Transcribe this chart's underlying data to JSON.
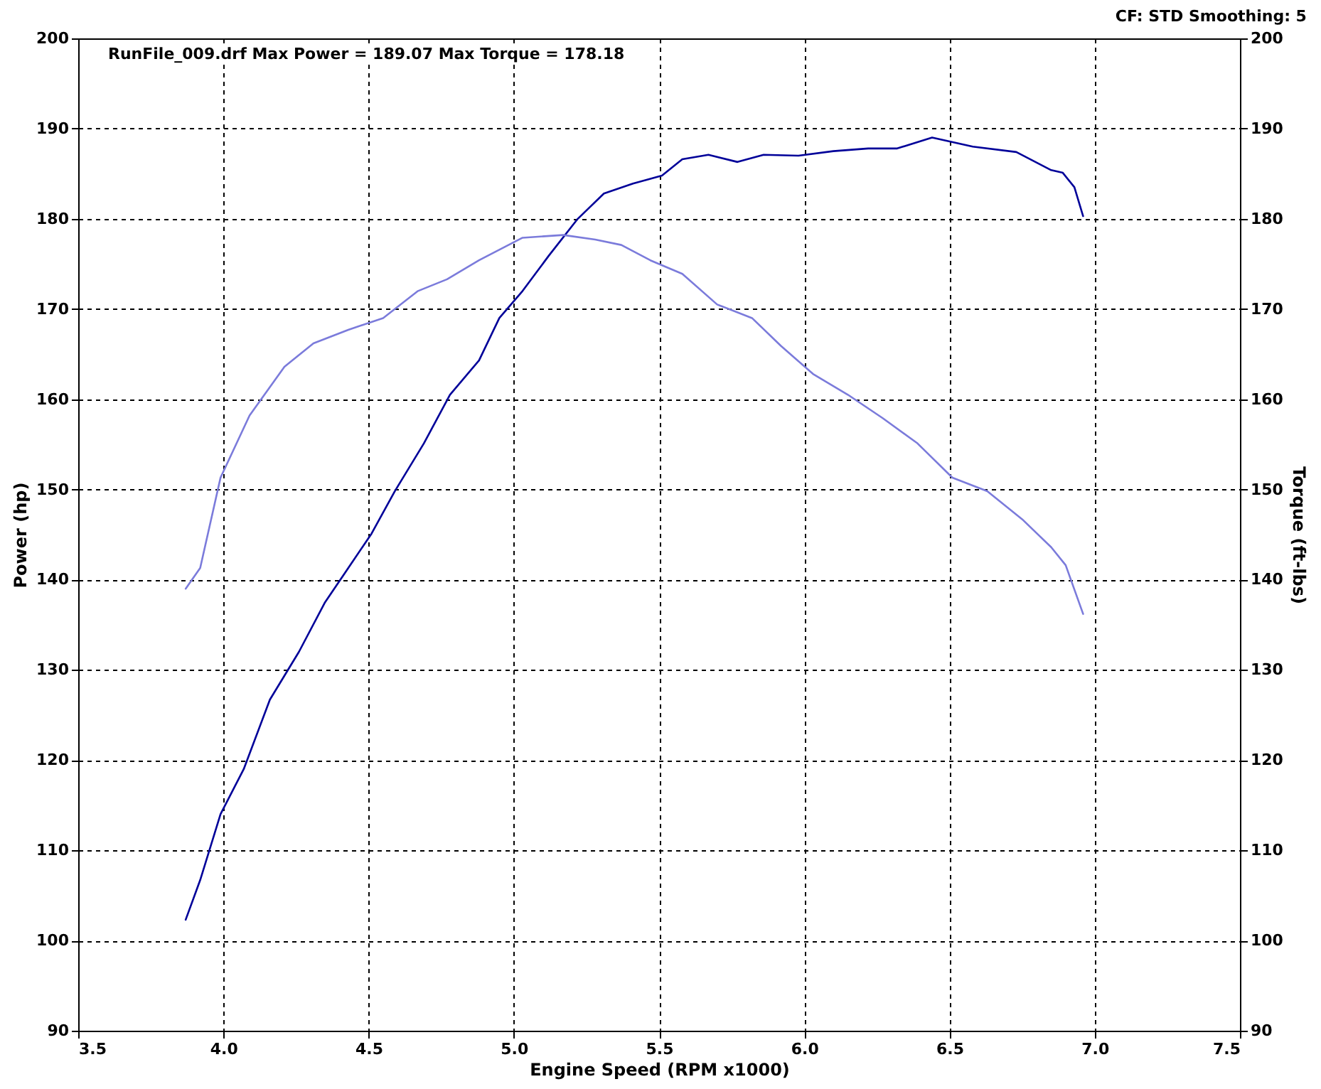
{
  "chart_data": {
    "type": "line",
    "xlabel": "Engine Speed (RPM x1000)",
    "ylabel": "Power (hp)",
    "y2label": "Torque (ft-lbs)",
    "annotations": [
      "CF: STD Smoothing: 5"
    ],
    "xlim": [
      3.5,
      7.5
    ],
    "xticks": [
      {
        "value": 3.5,
        "label": "3.5"
      },
      {
        "value": 4,
        "label": "4.0"
      },
      {
        "value": 4.5,
        "label": "4.5"
      },
      {
        "value": 5,
        "label": "5.0"
      },
      {
        "value": 5.5,
        "label": "5.5"
      },
      {
        "value": 6,
        "label": "6.0"
      },
      {
        "value": 6.5,
        "label": "6.5"
      },
      {
        "value": 7,
        "label": "7.0"
      },
      {
        "value": 7.5,
        "label": "7.5"
      }
    ],
    "ylim": [
      90,
      200
    ],
    "yticks": [
      90,
      100,
      110,
      120,
      130,
      140,
      150,
      160,
      170,
      180,
      190,
      200
    ],
    "y2lim": [
      90,
      200
    ],
    "y2ticks": [
      90,
      100,
      110,
      120,
      130,
      140,
      150,
      160,
      170,
      180,
      190,
      200
    ],
    "grid": true,
    "legend": "top left",
    "line_style": "solid",
    "series": [
      {
        "name": "RunFile_009.drf Max Power = 189.07     Max Torque = 178.18",
        "color": "#000099",
        "x": [
          3.87,
          3.92,
          3.99,
          4.07,
          4.16,
          4.26,
          4.35,
          4.43,
          4.51,
          4.59,
          4.69,
          4.78,
          4.88,
          4.95,
          5.03,
          5.12,
          5.22,
          5.31,
          5.41,
          5.51,
          5.58,
          5.67,
          5.77,
          5.86,
          5.98,
          6.1,
          6.22,
          6.32,
          6.44,
          6.58,
          6.73,
          6.85,
          6.89,
          6.93,
          6.96
        ],
        "values": [
          102.3,
          106.7,
          114,
          119,
          126.7,
          132,
          137.5,
          141.3,
          145.1,
          149.8,
          155.1,
          160.5,
          164.3,
          169,
          172,
          175.9,
          180,
          182.8,
          183.9,
          184.8,
          186.6,
          187.1,
          186.3,
          187.1,
          187,
          187.5,
          187.8,
          187.8,
          189,
          188,
          187.4,
          185.4,
          185.1,
          183.5,
          180.3
        ]
      },
      {
        "color": "#7b7bdb",
        "axis": "y2",
        "x": [
          3.87,
          3.92,
          3.99,
          4.09,
          4.21,
          4.31,
          4.43,
          4.55,
          4.67,
          4.77,
          4.88,
          5.03,
          5.17,
          5.28,
          5.37,
          5.47,
          5.58,
          5.7,
          5.82,
          5.92,
          6.03,
          6.15,
          6.27,
          6.39,
          6.51,
          6.63,
          6.75,
          6.85,
          6.9,
          6.96
        ],
        "values": [
          139,
          141.3,
          151.3,
          158.2,
          163.6,
          166.2,
          167.7,
          169,
          172,
          173.3,
          175.4,
          177.9,
          178.2,
          177.7,
          177.1,
          175.4,
          173.9,
          170.5,
          169,
          165.9,
          162.8,
          160.5,
          157.9,
          155.1,
          151.3,
          149.8,
          146.7,
          143.6,
          141.6,
          136.2
        ]
      }
    ]
  }
}
